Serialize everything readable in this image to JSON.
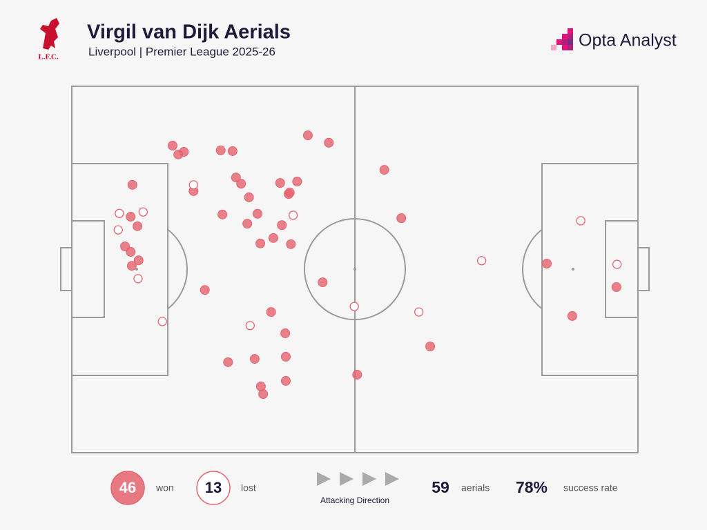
{
  "logo_text": "L.F.C.",
  "brand": "Opta Analyst",
  "chart_data": {
    "type": "scatter",
    "title": "Virgil van Dijk Aerials",
    "subtitle": "Liverpool | Premier League 2025-26",
    "direction_label": "Attacking Direction",
    "xlim": [
      0,
      100
    ],
    "ylim": [
      0,
      100
    ],
    "series": [
      {
        "name": "won",
        "color": "#e5636f",
        "filled": true,
        "x": [
          17.8,
          18.8,
          19.8,
          26.3,
          28.4,
          41.7,
          45.4,
          10.7,
          21.5,
          29.0,
          29.9,
          36.8,
          39.8,
          38.3,
          38.5,
          31.3,
          10.4,
          11.6,
          26.6,
          32.8,
          31.0,
          37.1,
          9.4,
          10.4,
          11.8,
          10.6,
          33.3,
          35.6,
          38.7,
          23.5,
          44.3,
          55.2,
          58.2,
          35.2,
          37.7,
          27.6,
          32.3,
          37.8,
          37.8,
          33.4,
          33.8,
          50.4,
          63.3,
          83.9,
          96.2,
          88.4
        ],
        "values": [
          83.8,
          81.4,
          82.1,
          82.5,
          82.3,
          86.6,
          84.6,
          73.1,
          71.4,
          75.1,
          73.4,
          73.6,
          74.0,
          70.6,
          71.0,
          69.7,
          64.4,
          61.8,
          65.0,
          65.2,
          62.5,
          62.1,
          56.3,
          54.8,
          52.5,
          51.0,
          57.1,
          58.6,
          56.9,
          44.4,
          46.5,
          77.2,
          64.0,
          38.4,
          32.6,
          24.7,
          25.6,
          26.2,
          19.6,
          18.1,
          16.0,
          21.3,
          29.0,
          51.6,
          45.2,
          37.3
        ]
      },
      {
        "name": "lost",
        "color": "#e5636f",
        "filled": false,
        "x": [
          21.5,
          8.4,
          12.6,
          8.2,
          39.1,
          11.7,
          16.0,
          31.5,
          49.9,
          61.3,
          72.4,
          89.9,
          96.3
        ],
        "values": [
          73.1,
          65.3,
          65.7,
          60.8,
          64.8,
          47.5,
          35.8,
          34.7,
          39.9,
          38.4,
          52.4,
          63.3,
          51.4
        ]
      }
    ],
    "stats": [
      {
        "value": 46,
        "label": "won",
        "badge": "filled"
      },
      {
        "value": 13,
        "label": "lost",
        "badge": "hollow"
      },
      {
        "value": 59,
        "label": "aerials"
      },
      {
        "value": 78,
        "value_label": "78%",
        "label": "success rate"
      }
    ]
  }
}
